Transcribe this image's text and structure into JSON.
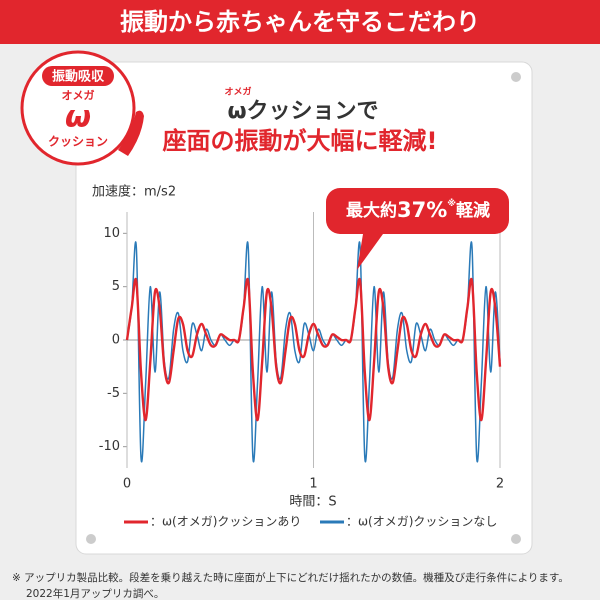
{
  "header": {
    "title": "振動から赤ちゃんを守るこだわり"
  },
  "badge": {
    "top": "振動吸収",
    "ruby": "オメガ",
    "symbol": "ω",
    "bottom": "クッション"
  },
  "heading": {
    "ruby": "オメガ",
    "line1": "ωクッションで",
    "line2": "座面の振動が大幅に軽減!"
  },
  "chart_data": {
    "type": "line",
    "ylabel": "加速度：m/s2",
    "xlabel": "時間：S",
    "annotation": {
      "prefix": "最大約",
      "number": "37%",
      "mark": "※",
      "suffix": "軽減"
    },
    "x": [
      0,
      0.025,
      0.05,
      0.075,
      0.1,
      0.125,
      0.15,
      0.175,
      0.2,
      0.225,
      0.25,
      0.275,
      0.3,
      0.325,
      0.35,
      0.375,
      0.4,
      0.425,
      0.45,
      0.475,
      0.5,
      0.525,
      0.55,
      0.575,
      0.6,
      0.625,
      0.65,
      0.675,
      0.7,
      0.725,
      0.75,
      0.775,
      0.8,
      0.825,
      0.85,
      0.875,
      0.9,
      0.925,
      0.95,
      0.975,
      1,
      1.025,
      1.05,
      1.075,
      1.1,
      1.125,
      1.15,
      1.175,
      1.2,
      1.225,
      1.25,
      1.275,
      1.3,
      1.325,
      1.35,
      1.375,
      1.4,
      1.425,
      1.45,
      1.475,
      1.5,
      1.525,
      1.55,
      1.575,
      1.6,
      1.625,
      1.65,
      1.675,
      1.7,
      1.725,
      1.75,
      1.775,
      1.8,
      1.825,
      1.85,
      1.875,
      1.9,
      1.925,
      1.95,
      1.975,
      2
    ],
    "series": [
      {
        "name": "：ω(オメガ)クッションなし",
        "color": "#2a7ab8",
        "values": [
          0,
          3,
          8.7,
          -11,
          -4,
          5,
          -3,
          4.5,
          -2,
          -3.5,
          1,
          2.5,
          -1,
          -2,
          1.5,
          0.5,
          -1,
          1,
          0,
          -0.5,
          0.5,
          0,
          -0.5,
          0,
          0,
          3,
          8.7,
          -11,
          -4,
          5,
          -3,
          4.5,
          -2,
          -3.5,
          1,
          2.5,
          -1,
          -2,
          1.5,
          0.5,
          -1,
          1,
          0,
          -0.5,
          0.5,
          0,
          -0.5,
          0,
          0,
          3,
          8.7,
          -11,
          -4,
          5,
          -3,
          4.5,
          -2,
          -3.5,
          1,
          2.5,
          -1,
          -2,
          1.5,
          0.5,
          -1,
          1,
          0,
          -0.5,
          0.5,
          0,
          -0.5,
          0,
          0,
          3,
          8.7,
          -11,
          -4,
          5,
          -3,
          4.5,
          -2
        ]
      },
      {
        "name": "：ω(オメガ)クッションあり",
        "color": "#e1262d",
        "values": [
          0,
          3,
          5.5,
          -3,
          -7.5,
          -2,
          4.5,
          3,
          -2.5,
          -4,
          -1,
          2,
          1.5,
          -1,
          -1.5,
          0.5,
          1.5,
          0.5,
          -0.5,
          -0.5,
          0.5,
          0.3,
          0,
          0,
          0,
          3,
          5.5,
          -3,
          -7.5,
          -2,
          4.5,
          3,
          -2.5,
          -4,
          -1,
          2,
          1.5,
          -1,
          -1.5,
          0.5,
          1.5,
          0.5,
          -0.5,
          -0.5,
          0.5,
          0.3,
          0,
          0,
          0,
          3,
          5.5,
          -3,
          -7.5,
          -2,
          4.5,
          3,
          -2.5,
          -4,
          -1,
          2,
          1.5,
          -1,
          -1.5,
          0.5,
          1.5,
          0.5,
          -0.5,
          -0.5,
          0.5,
          0.3,
          0,
          0,
          0,
          3,
          5.5,
          -3,
          -7.5,
          -2,
          4.5,
          3,
          -2.5
        ]
      }
    ],
    "legend_order": [
      1,
      0
    ],
    "xlim": [
      0,
      2
    ],
    "ylim": [
      -12,
      12
    ],
    "xticks": [
      0,
      1,
      2
    ],
    "yticks": [
      10,
      5,
      0,
      -5,
      -10
    ],
    "zero_line": true,
    "grid": false
  },
  "footnote": [
    "※ アップリカ製品比較。段差を乗り越えた時に座面が上下にどれだけ揺れたかの数値。機種及び走行条件によります。",
    "2022年1月アップリカ調べ。"
  ]
}
